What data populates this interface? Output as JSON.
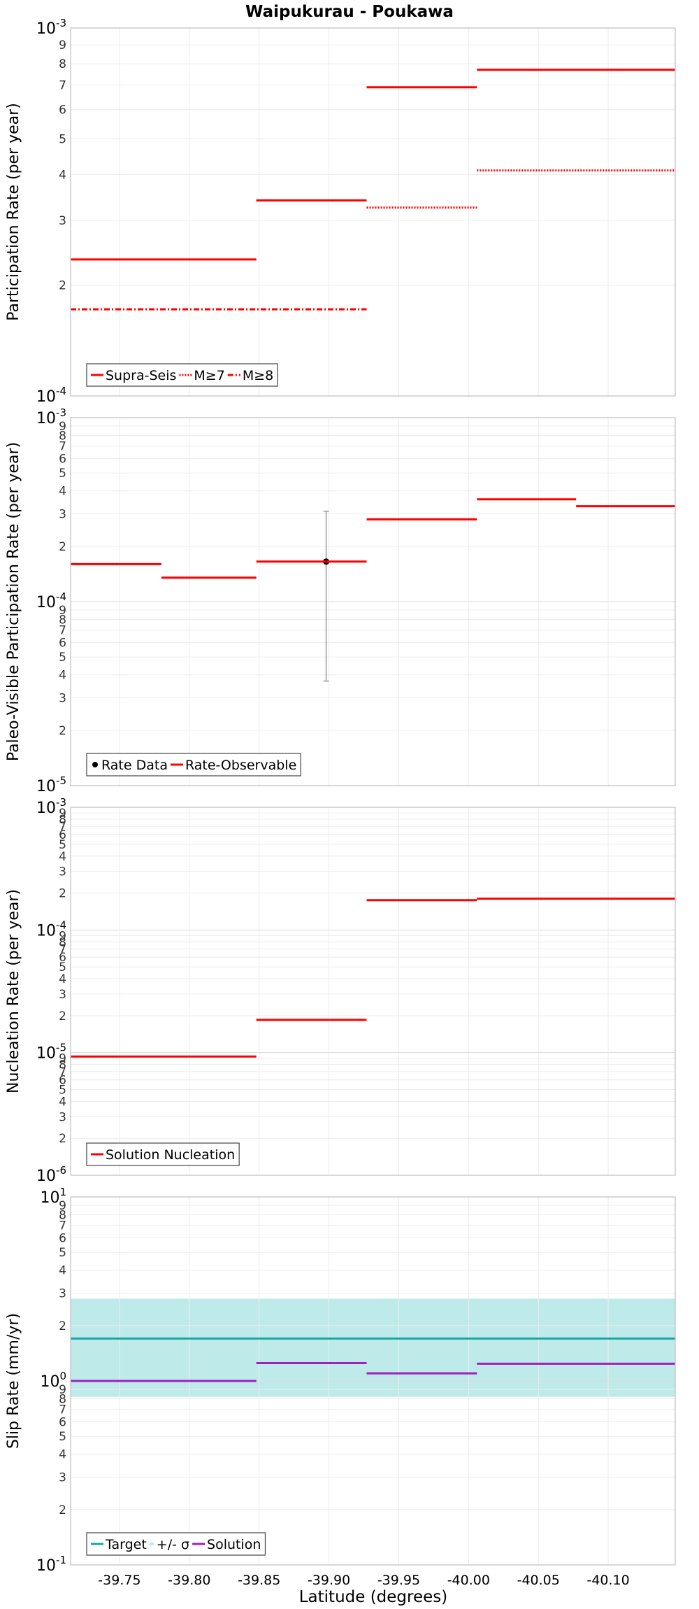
{
  "figure": {
    "title": "Waipukurau - Poukawa",
    "xlabel": "Latitude (degrees)",
    "xlim": [
      -39.715,
      -40.148
    ],
    "xticks": [
      -39.75,
      -39.8,
      -39.85,
      -39.9,
      -39.95,
      -40.0,
      -40.05,
      -40.1
    ],
    "xtick_labels": [
      "-39.75",
      "-39.80",
      "-39.85",
      "-39.90",
      "-39.95",
      "-40.00",
      "-40.05",
      "-40.10"
    ]
  },
  "chart_data": [
    {
      "type": "line",
      "name": "participation",
      "ylabel": "Participation Rate (per year)",
      "yscale": "log",
      "ylim": [
        0.0001,
        0.001
      ],
      "legend_position": "bottom-left",
      "grid": true,
      "series": [
        {
          "name": "Supra-Seis",
          "style": "solid",
          "color": "#ff0000",
          "segments": [
            {
              "x": [
                -39.715,
                -39.848
              ],
              "y": 0.000235
            },
            {
              "x": [
                -39.848,
                -39.927
              ],
              "y": 0.00034
            },
            {
              "x": [
                -39.927,
                -40.006
              ],
              "y": 0.00069
            },
            {
              "x": [
                -40.006,
                -40.148
              ],
              "y": 0.00077
            }
          ]
        },
        {
          "name": "M≥7",
          "style": "dotted",
          "color": "#ff0000",
          "segments": [
            {
              "x": [
                -39.848,
                -39.927
              ],
              "y": 0.00034
            },
            {
              "x": [
                -39.927,
                -40.006
              ],
              "y": 0.000325
            },
            {
              "x": [
                -40.006,
                -40.148
              ],
              "y": 0.00041
            }
          ]
        },
        {
          "name": "M≥8",
          "style": "dashdot",
          "color": "#ff0000",
          "segments": [
            {
              "x": [
                -39.715,
                -39.927
              ],
              "y": 0.000172
            }
          ]
        }
      ]
    },
    {
      "type": "line",
      "name": "paleo",
      "ylabel": "Paleo-Visible Participation Rate (per year)",
      "yscale": "log",
      "ylim": [
        1e-05,
        0.001
      ],
      "legend_position": "bottom-left",
      "grid": true,
      "series": [
        {
          "name": "Rate Data",
          "style": "point",
          "color": "#000000",
          "points": [
            {
              "x": -39.898,
              "y": 0.000165,
              "ylow": 3.7e-05,
              "yhigh": 0.00031
            }
          ]
        },
        {
          "name": "Rate-Observable",
          "style": "solid",
          "color": "#ff0000",
          "segments": [
            {
              "x": [
                -39.715,
                -39.78
              ],
              "y": 0.00016
            },
            {
              "x": [
                -39.78,
                -39.848
              ],
              "y": 0.000135
            },
            {
              "x": [
                -39.848,
                -39.927
              ],
              "y": 0.000165
            },
            {
              "x": [
                -39.927,
                -40.006
              ],
              "y": 0.00028
            },
            {
              "x": [
                -40.006,
                -40.077
              ],
              "y": 0.00036
            },
            {
              "x": [
                -40.077,
                -40.148
              ],
              "y": 0.00033
            }
          ]
        }
      ]
    },
    {
      "type": "line",
      "name": "nucleation",
      "ylabel": "Nucleation Rate (per year)",
      "yscale": "log",
      "ylim": [
        1e-06,
        0.001
      ],
      "legend_position": "bottom-left",
      "grid": true,
      "series": [
        {
          "name": "Solution Nucleation",
          "style": "solid",
          "color": "#ff0000",
          "segments": [
            {
              "x": [
                -39.715,
                -39.848
              ],
              "y": 9.3e-06
            },
            {
              "x": [
                -39.848,
                -39.927
              ],
              "y": 1.85e-05
            },
            {
              "x": [
                -39.927,
                -40.006
              ],
              "y": 0.000175
            },
            {
              "x": [
                -40.006,
                -40.148
              ],
              "y": 0.00018
            }
          ]
        }
      ]
    },
    {
      "type": "line",
      "name": "slip",
      "ylabel": "Slip Rate (mm/yr)",
      "yscale": "log",
      "ylim": [
        0.1,
        10
      ],
      "legend_position": "bottom-left",
      "grid": true,
      "series": [
        {
          "name": "Target",
          "style": "solid",
          "color": "#17a6a6",
          "segments": [
            {
              "x": [
                -39.715,
                -40.148
              ],
              "y": 1.7
            }
          ]
        },
        {
          "name": "+/- σ",
          "style": "band",
          "color": "#bfeaea",
          "band": {
            "x": [
              -39.715,
              -40.148
            ],
            "ylow": 0.82,
            "yhigh": 2.8
          }
        },
        {
          "name": "Solution",
          "style": "solid",
          "color": "#a020c0",
          "segments": [
            {
              "x": [
                -39.715,
                -39.848
              ],
              "y": 1.0
            },
            {
              "x": [
                -39.848,
                -39.927
              ],
              "y": 1.25
            },
            {
              "x": [
                -39.927,
                -40.006
              ],
              "y": 1.1
            },
            {
              "x": [
                -40.006,
                -40.148
              ],
              "y": 1.24
            }
          ]
        }
      ]
    }
  ]
}
